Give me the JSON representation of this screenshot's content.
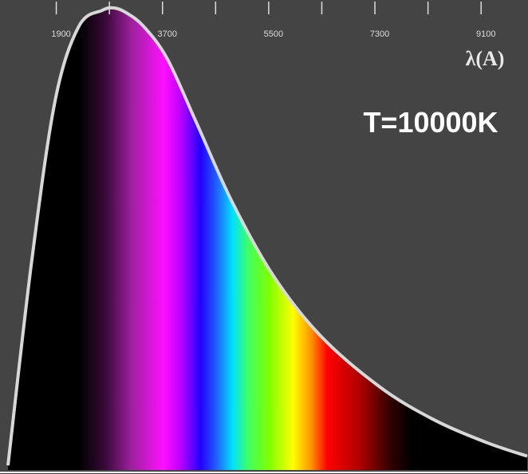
{
  "chart_data": {
    "type": "area",
    "annotation": "T=10000K",
    "x_label": "λ(A)",
    "x": [
      1000,
      1400,
      1800,
      2200,
      2600,
      2800,
      3000,
      3300,
      3700,
      4200,
      4800,
      5500,
      6300,
      7300,
      8200,
      9100,
      9800
    ],
    "values": [
      1,
      45,
      80,
      96,
      99.5,
      100,
      99,
      96,
      89,
      75,
      58,
      42,
      29,
      18,
      11,
      6,
      3
    ],
    "color": "#d8d8d8",
    "xlim": [
      1000,
      9800
    ],
    "xticks": [
      1900,
      3700,
      5500,
      7300,
      9100
    ],
    "xminorticks": [
      2800,
      4600,
      6400,
      8200
    ],
    "ylim": [
      0,
      100
    ]
  }
}
